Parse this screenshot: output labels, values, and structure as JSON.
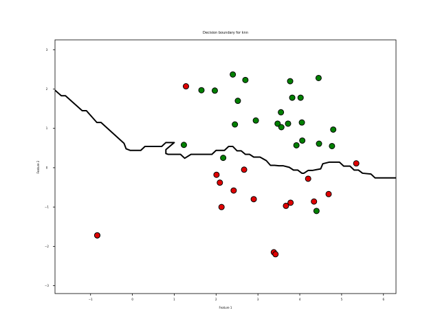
{
  "chart_data": {
    "type": "scatter",
    "title": "Decision boundary for knn",
    "xlabel": "Feature 1",
    "ylabel": "Feature 2",
    "xlim": [
      -1.85,
      6.3
    ],
    "ylim": [
      -3.2,
      3.25
    ],
    "xticks": [
      -1,
      0,
      1,
      2,
      3,
      4,
      5,
      6
    ],
    "yticks": [
      -3,
      -2,
      -1,
      0,
      1,
      2,
      3
    ],
    "tick_labels_x": [
      "−1",
      "0",
      "1",
      "2",
      "3",
      "4",
      "5",
      "6"
    ],
    "tick_labels_y": [
      "−3",
      "−2",
      "−1",
      "0",
      "1",
      "2",
      "3"
    ],
    "grid": false,
    "series": [
      {
        "color": "#008000",
        "points": [
          [
            1.23,
            0.58
          ],
          [
            1.65,
            1.97
          ],
          [
            1.97,
            1.96
          ],
          [
            2.17,
            0.25
          ],
          [
            2.4,
            2.37
          ],
          [
            2.45,
            1.1
          ],
          [
            2.52,
            1.7
          ],
          [
            2.7,
            2.23
          ],
          [
            2.95,
            1.2
          ],
          [
            3.47,
            1.12
          ],
          [
            3.55,
            1.41
          ],
          [
            3.56,
            1.03
          ],
          [
            3.72,
            1.12
          ],
          [
            3.77,
            2.2
          ],
          [
            3.82,
            1.78
          ],
          [
            3.92,
            0.57
          ],
          [
            4.02,
            1.78
          ],
          [
            4.05,
            1.15
          ],
          [
            4.06,
            0.69
          ],
          [
            4.4,
            -1.1
          ],
          [
            4.45,
            2.28
          ],
          [
            4.46,
            0.61
          ],
          [
            4.77,
            0.55
          ],
          [
            4.8,
            0.97
          ]
        ]
      },
      {
        "color": "#e00000",
        "points": [
          [
            1.28,
            2.07
          ],
          [
            2.01,
            -0.18
          ],
          [
            2.09,
            -0.38
          ],
          [
            2.13,
            -1.0
          ],
          [
            2.42,
            -0.58
          ],
          [
            2.67,
            -0.05
          ],
          [
            2.9,
            -0.8
          ],
          [
            3.38,
            -2.15
          ],
          [
            3.42,
            -2.2
          ],
          [
            3.67,
            -0.97
          ],
          [
            3.78,
            -0.89
          ],
          [
            4.2,
            -0.28
          ],
          [
            4.34,
            -0.86
          ],
          [
            4.69,
            -0.67
          ],
          [
            5.35,
            0.11
          ],
          [
            -0.84,
            -1.72
          ],
          [
            -0.84,
            -1.72
          ]
        ]
      }
    ],
    "boundary": [
      [
        -1.85,
        1.97
      ],
      [
        -1.7,
        1.83
      ],
      [
        -1.6,
        1.83
      ],
      [
        -1.2,
        1.45
      ],
      [
        -1.1,
        1.45
      ],
      [
        -0.85,
        1.15
      ],
      [
        -0.75,
        1.15
      ],
      [
        -0.2,
        0.62
      ],
      [
        -0.15,
        0.48
      ],
      [
        -0.05,
        0.44
      ],
      [
        0.2,
        0.44
      ],
      [
        0.3,
        0.54
      ],
      [
        0.7,
        0.54
      ],
      [
        0.8,
        0.64
      ],
      [
        1.0,
        0.64
      ],
      [
        0.8,
        0.46
      ],
      [
        0.8,
        0.36
      ],
      [
        0.85,
        0.34
      ],
      [
        1.15,
        0.34
      ],
      [
        1.25,
        0.24
      ],
      [
        1.4,
        0.34
      ],
      [
        1.9,
        0.34
      ],
      [
        2.0,
        0.44
      ],
      [
        2.2,
        0.44
      ],
      [
        2.3,
        0.54
      ],
      [
        2.4,
        0.54
      ],
      [
        2.5,
        0.43
      ],
      [
        2.6,
        0.43
      ],
      [
        2.7,
        0.34
      ],
      [
        2.8,
        0.34
      ],
      [
        2.9,
        0.27
      ],
      [
        3.05,
        0.27
      ],
      [
        3.2,
        0.18
      ],
      [
        3.3,
        0.06
      ],
      [
        3.4,
        0.06
      ],
      [
        3.5,
        0.05
      ],
      [
        3.6,
        0.05
      ],
      [
        3.75,
        0.01
      ],
      [
        3.85,
        -0.06
      ],
      [
        3.95,
        -0.06
      ],
      [
        4.05,
        -0.14
      ],
      [
        4.1,
        -0.14
      ],
      [
        4.2,
        -0.07
      ],
      [
        4.3,
        -0.07
      ],
      [
        4.4,
        -0.05
      ],
      [
        4.5,
        -0.03
      ],
      [
        4.55,
        0.1
      ],
      [
        4.7,
        0.14
      ],
      [
        4.95,
        0.14
      ],
      [
        5.05,
        0.04
      ],
      [
        5.2,
        0.04
      ],
      [
        5.3,
        -0.06
      ],
      [
        5.4,
        -0.06
      ],
      [
        5.5,
        -0.14
      ],
      [
        5.7,
        -0.16
      ],
      [
        5.8,
        -0.26
      ],
      [
        6.3,
        -0.26
      ]
    ]
  }
}
